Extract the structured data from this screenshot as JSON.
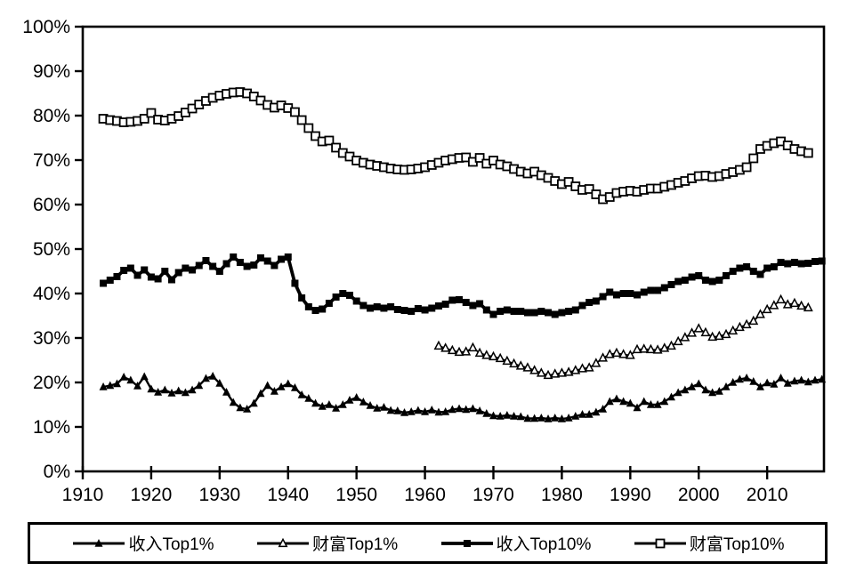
{
  "chart_data": {
    "type": "line",
    "title": "",
    "color": "#000000",
    "background": "#ffffff",
    "grid": false,
    "legend_position": "bottom",
    "x_axis": {
      "label": "",
      "range": [
        1910,
        2018.3
      ],
      "ticks": [
        1910,
        1920,
        1930,
        1940,
        1950,
        1960,
        1970,
        1980,
        1990,
        2000,
        2010
      ],
      "tick_labels": [
        "1910",
        "1920",
        "1930",
        "1940",
        "1950",
        "1960",
        "1970",
        "1980",
        "1990",
        "2000",
        "2010"
      ]
    },
    "y_axis": {
      "label": "",
      "range": [
        0,
        100
      ],
      "ticks": [
        0,
        10,
        20,
        30,
        40,
        50,
        60,
        70,
        80,
        90,
        100
      ],
      "tick_labels": [
        "0%",
        "10%",
        "20%",
        "30%",
        "40%",
        "50%",
        "60%",
        "70%",
        "80%",
        "90%",
        "100%"
      ]
    },
    "series": [
      {
        "name": "收入Top1%",
        "marker": "triangle-filled",
        "start_year": 1913,
        "values": [
          19.0,
          19.3,
          19.7,
          21.2,
          20.5,
          19.2,
          21.3,
          18.5,
          17.8,
          18.3,
          17.6,
          18.1,
          17.7,
          18.3,
          19.3,
          20.9,
          21.4,
          19.8,
          17.8,
          15.5,
          14.3,
          14.0,
          15.3,
          17.5,
          19.3,
          18.0,
          19.0,
          19.7,
          18.8,
          17.2,
          16.4,
          15.3,
          14.6,
          15.0,
          14.2,
          15.0,
          16.0,
          16.6,
          15.6,
          14.8,
          14.2,
          14.4,
          13.7,
          13.6,
          13.2,
          13.4,
          13.7,
          13.4,
          13.8,
          13.3,
          13.4,
          13.9,
          14.1,
          13.9,
          14.1,
          13.6,
          13.0,
          12.5,
          12.4,
          12.6,
          12.4,
          12.3,
          11.9,
          11.9,
          12.0,
          11.8,
          12.0,
          11.8,
          12.0,
          12.4,
          12.8,
          12.8,
          13.3,
          14.0,
          15.7,
          16.3,
          15.7,
          15.3,
          14.3,
          15.7,
          15.0,
          15.0,
          15.7,
          16.7,
          17.7,
          18.3,
          19.0,
          19.7,
          18.3,
          17.7,
          18.0,
          19.0,
          20.0,
          20.7,
          21.0,
          20.2,
          19.0,
          19.9,
          19.6,
          21.0,
          19.8,
          20.3,
          20.5,
          20.1,
          20.5,
          20.7
        ]
      },
      {
        "name": "财富Top1%",
        "marker": "triangle-open",
        "start_year": 1962,
        "values": [
          28.2,
          27.7,
          27.2,
          26.8,
          26.9,
          27.8,
          26.6,
          26.1,
          25.8,
          25.4,
          24.8,
          24.2,
          23.7,
          23.3,
          22.7,
          22.1,
          21.6,
          21.9,
          22.1,
          22.3,
          22.7,
          23.1,
          23.3,
          24.3,
          25.5,
          26.3,
          26.6,
          26.3,
          26.1,
          27.4,
          27.5,
          27.4,
          27.3,
          27.7,
          28.2,
          29.2,
          30.1,
          31.1,
          32.1,
          31.2,
          30.2,
          30.4,
          30.8,
          31.6,
          32.4,
          33.0,
          33.8,
          35.3,
          36.4,
          37.3,
          38.6,
          37.5,
          37.8,
          37.2,
          36.8
        ]
      },
      {
        "name": "收入Top10%",
        "marker": "square-filled",
        "start_year": 1913,
        "values": [
          42.3,
          43.0,
          43.8,
          45.2,
          45.7,
          44.1,
          45.3,
          43.7,
          43.3,
          45.0,
          43.1,
          44.7,
          45.7,
          45.3,
          46.3,
          47.4,
          46.1,
          45.0,
          46.7,
          48.2,
          47.0,
          46.1,
          46.4,
          48.0,
          47.3,
          46.3,
          47.7,
          48.2,
          42.3,
          39.0,
          37.0,
          36.2,
          36.5,
          37.8,
          39.2,
          40.0,
          39.6,
          38.3,
          37.3,
          36.7,
          37.0,
          36.7,
          37.0,
          36.4,
          36.2,
          36.0,
          36.6,
          36.3,
          36.7,
          37.2,
          37.6,
          38.5,
          38.6,
          38.0,
          37.3,
          37.7,
          36.3,
          35.3,
          36.0,
          36.3,
          36.0,
          36.0,
          35.7,
          35.7,
          36.0,
          35.7,
          35.3,
          35.7,
          36.0,
          36.3,
          37.3,
          38.0,
          38.3,
          39.3,
          40.3,
          39.7,
          40.0,
          40.0,
          39.7,
          40.3,
          40.7,
          40.7,
          41.3,
          42.0,
          42.7,
          43.0,
          43.7,
          44.0,
          43.0,
          42.7,
          43.0,
          44.0,
          45.0,
          45.7,
          46.0,
          45.0,
          44.3,
          45.7,
          46.0,
          47.0,
          46.7,
          47.0,
          46.7,
          46.8,
          47.2,
          47.3
        ]
      },
      {
        "name": "财富Top10%",
        "marker": "square-open",
        "start_year": 1913,
        "values": [
          79.3,
          79.0,
          78.8,
          78.5,
          78.6,
          78.8,
          79.3,
          80.6,
          79.1,
          78.9,
          79.3,
          79.9,
          80.7,
          81.6,
          82.5,
          83.3,
          84.0,
          84.5,
          84.9,
          85.2,
          85.3,
          85.0,
          84.3,
          83.4,
          82.4,
          81.8,
          82.3,
          81.7,
          80.8,
          79.0,
          77.2,
          75.4,
          74.2,
          74.4,
          72.8,
          71.6,
          70.8,
          69.9,
          69.4,
          69.0,
          68.7,
          68.4,
          68.1,
          67.9,
          67.8,
          67.9,
          68.1,
          68.4,
          68.9,
          69.4,
          69.9,
          70.2,
          70.5,
          70.6,
          69.6,
          70.5,
          69.2,
          69.9,
          69.0,
          68.6,
          68.0,
          67.4,
          67.0,
          67.4,
          66.6,
          66.0,
          65.3,
          64.6,
          65.1,
          64.1,
          63.3,
          63.5,
          62.3,
          61.2,
          61.7,
          62.6,
          62.9,
          63.1,
          62.9,
          63.3,
          63.6,
          63.6,
          64.0,
          64.4,
          64.9,
          65.3,
          65.9,
          66.4,
          66.5,
          66.2,
          66.4,
          66.9,
          67.3,
          67.8,
          68.4,
          70.4,
          72.5,
          73.2,
          73.8,
          74.2,
          73.3,
          72.5,
          72.0,
          71.6
        ]
      }
    ]
  }
}
